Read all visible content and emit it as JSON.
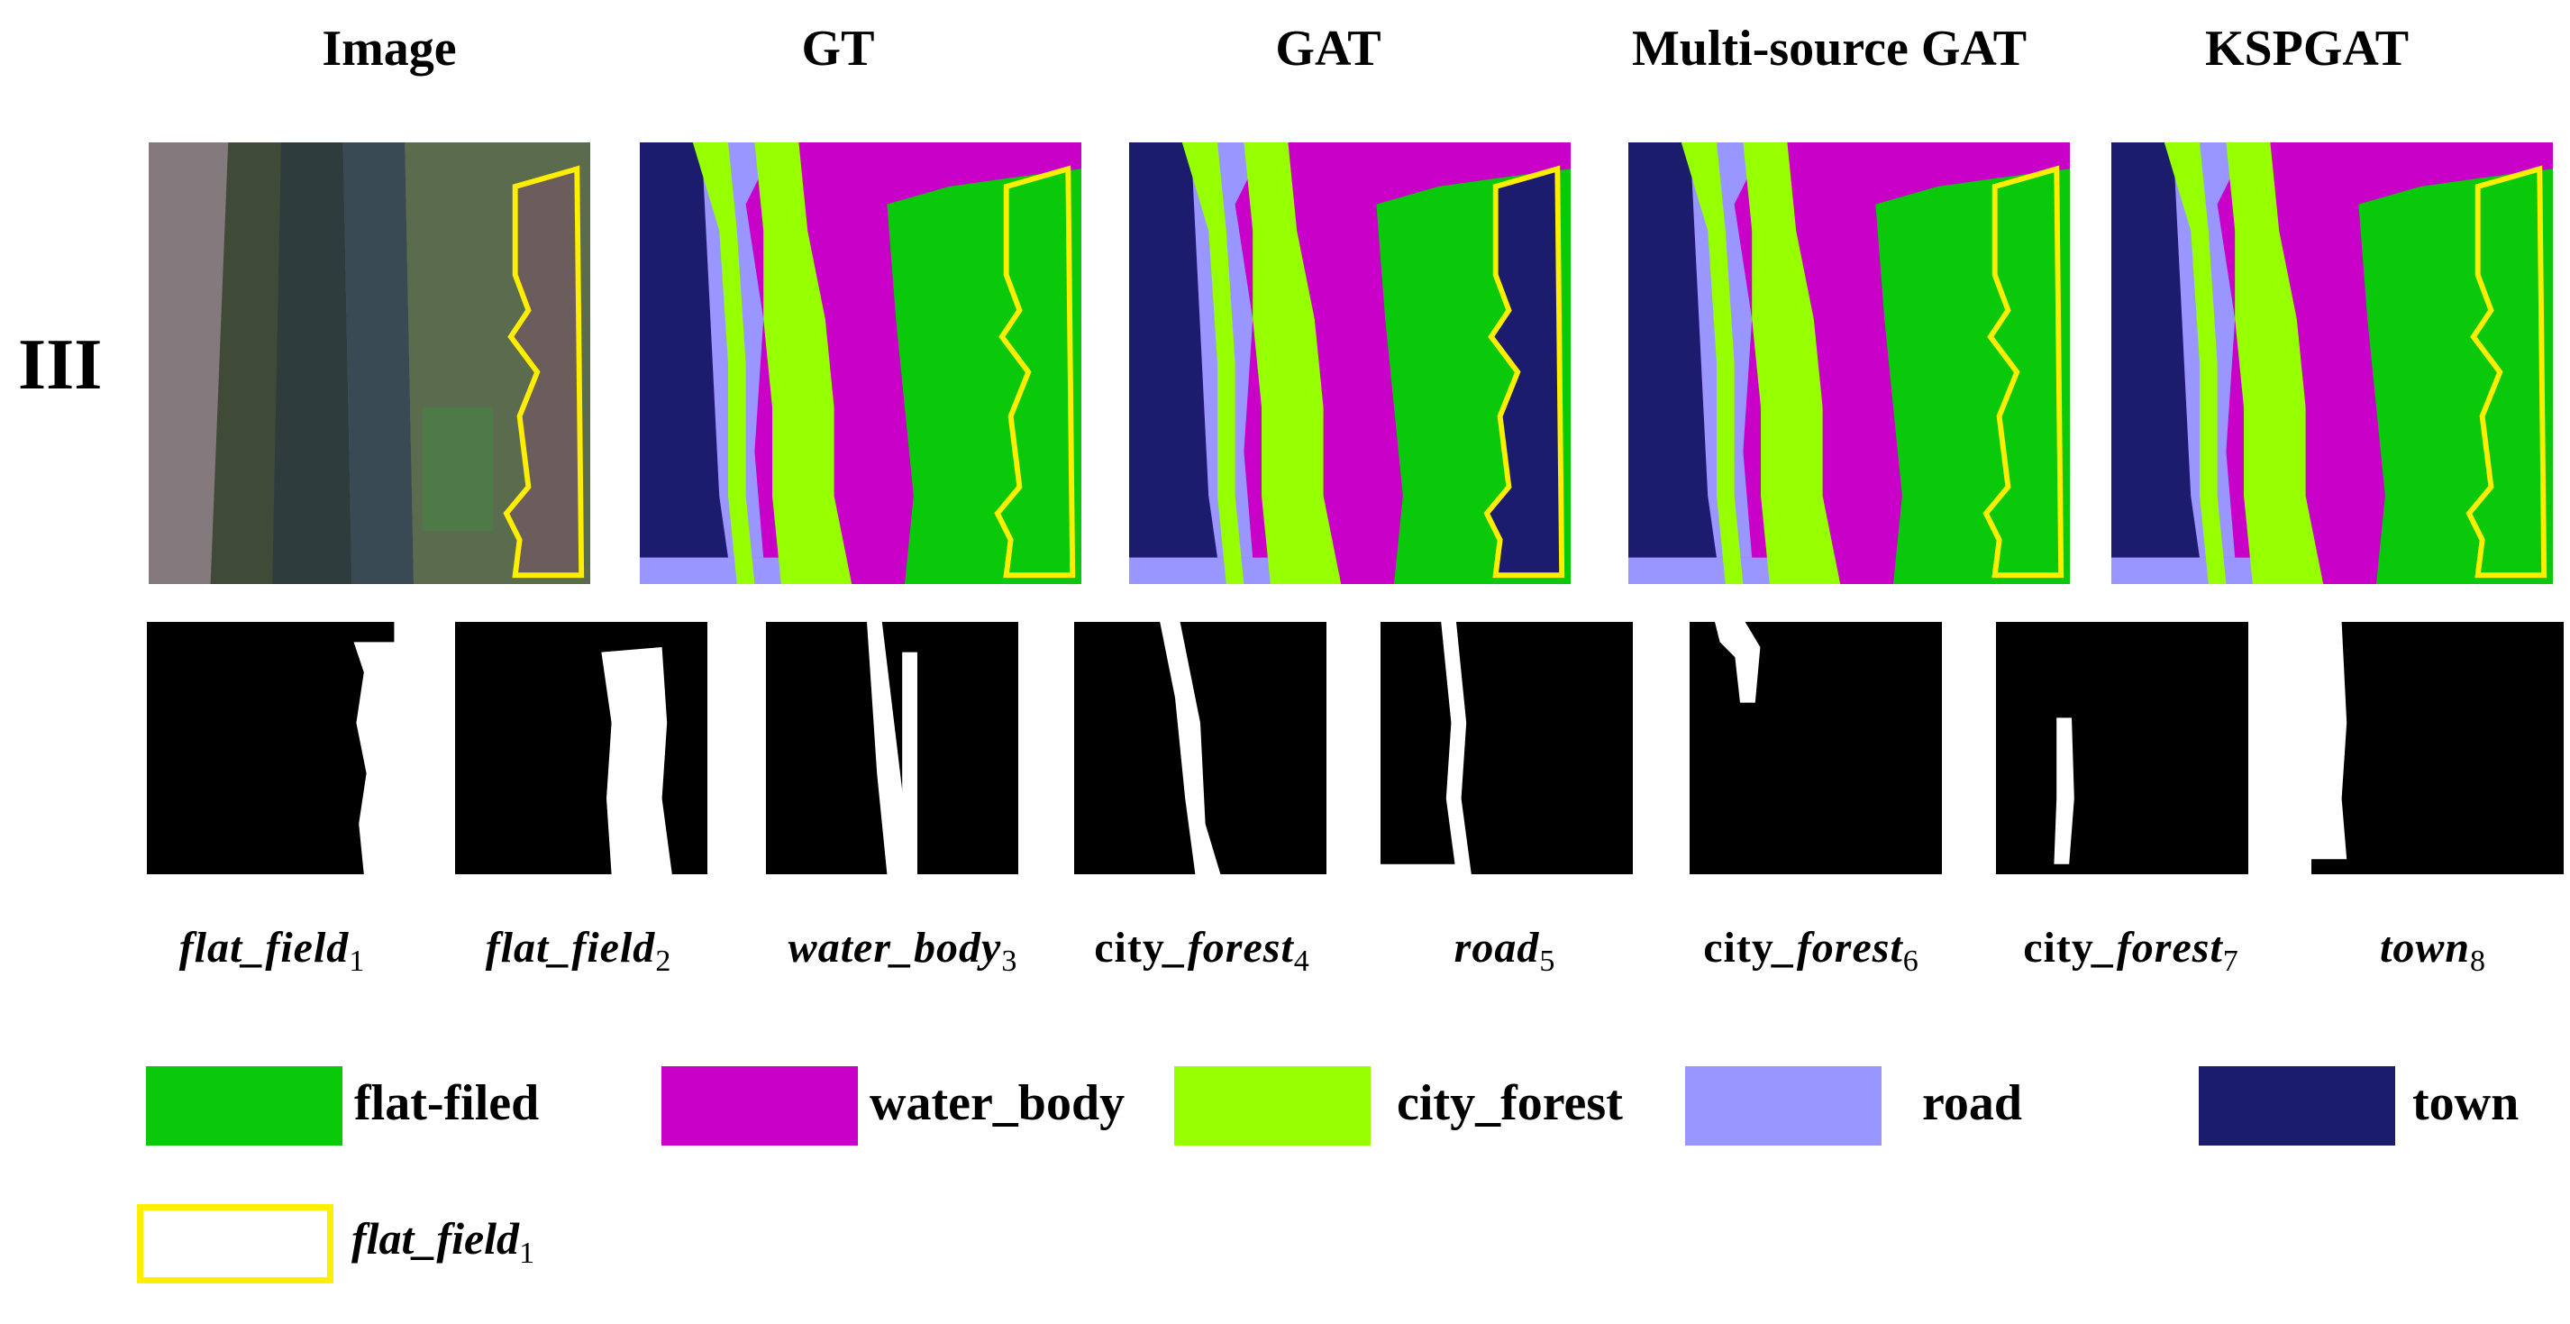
{
  "columns": [
    "Image",
    "GT",
    "GAT",
    "Multi-source GAT",
    "KSPGAT"
  ],
  "row_label": "III",
  "colors": {
    "flat_field": "#0ac80a",
    "water_body": "#c800c8",
    "city_forest": "#96ff00",
    "road": "#9a96ff",
    "town": "#1c1c6e",
    "outline": "#ffee00"
  },
  "masks": [
    {
      "name": "flat_field",
      "sub": "1",
      "prefix": ""
    },
    {
      "name": "flat_field",
      "sub": "2",
      "prefix": ""
    },
    {
      "name": "water_body",
      "sub": "3",
      "prefix": ""
    },
    {
      "name": "_forest",
      "sub": "4",
      "prefix": "city"
    },
    {
      "name": "road",
      "sub": "5",
      "prefix": ""
    },
    {
      "name": "_forest",
      "sub": "6",
      "prefix": "city"
    },
    {
      "name": "_forest",
      "sub": "7",
      "prefix": "city"
    },
    {
      "name": "town",
      "sub": "8",
      "prefix": ""
    }
  ],
  "legend": [
    "flat-filed",
    "water_body",
    "city_forest",
    "road",
    "town"
  ],
  "outline_legend": {
    "name": "flat_field",
    "sub": "1"
  }
}
